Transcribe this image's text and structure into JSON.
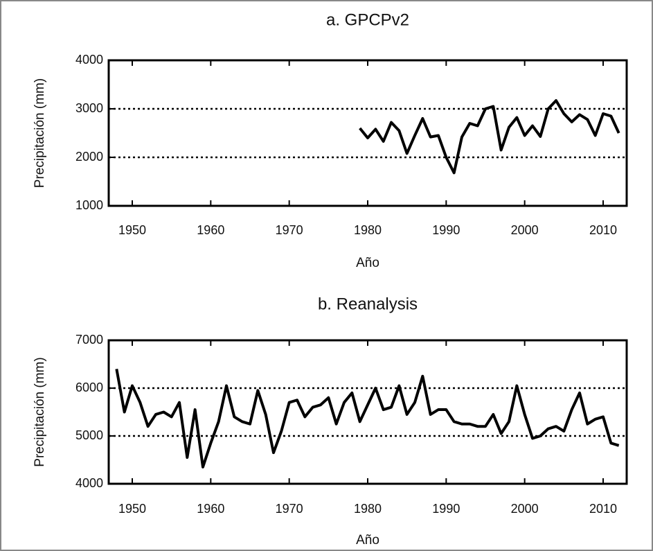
{
  "chart_data": [
    {
      "type": "line",
      "title": "a. GPCPv2",
      "x_label": "Año",
      "y_label": "Precipitación (mm)",
      "x": [
        1979,
        1980,
        1981,
        1982,
        1983,
        1984,
        1985,
        1986,
        1987,
        1988,
        1989,
        1990,
        1991,
        1992,
        1993,
        1994,
        1995,
        1996,
        1997,
        1998,
        1999,
        2000,
        2001,
        2002,
        2003,
        2004,
        2005,
        2006,
        2007,
        2008,
        2009,
        2010,
        2011,
        2012
      ],
      "series": [
        {
          "color": "#000000",
          "values": [
            2600,
            2400,
            2580,
            2330,
            2720,
            2550,
            2080,
            2450,
            2800,
            2420,
            2450,
            2000,
            1680,
            2420,
            2700,
            2650,
            3000,
            3050,
            2150,
            2620,
            2820,
            2450,
            2650,
            2430,
            3000,
            3170,
            2900,
            2730,
            2880,
            2780,
            2450,
            2900,
            2850,
            2500
          ]
        }
      ],
      "xlim": [
        1947,
        2013
      ],
      "xticks": [
        1950,
        1960,
        1970,
        1980,
        1990,
        2000,
        2010
      ],
      "ylim": [
        1000,
        4000
      ],
      "yticks": [
        1000,
        2000,
        3000,
        4000
      ],
      "grid": true
    },
    {
      "type": "line",
      "title": "b. Reanalysis",
      "x_label": "Año",
      "y_label": "Precipitación (mm)",
      "x": [
        1948,
        1949,
        1950,
        1951,
        1952,
        1953,
        1954,
        1955,
        1956,
        1957,
        1958,
        1959,
        1960,
        1961,
        1962,
        1963,
        1964,
        1965,
        1966,
        1967,
        1968,
        1969,
        1970,
        1971,
        1972,
        1973,
        1974,
        1975,
        1976,
        1977,
        1978,
        1979,
        1980,
        1981,
        1982,
        1983,
        1984,
        1985,
        1986,
        1987,
        1988,
        1989,
        1990,
        1991,
        1992,
        1993,
        1994,
        1995,
        1996,
        1997,
        1998,
        1999,
        2000,
        2001,
        2002,
        2003,
        2004,
        2005,
        2006,
        2007,
        2008,
        2009,
        2010,
        2011,
        2012
      ],
      "series": [
        {
          "color": "#000000",
          "values": [
            6400,
            5500,
            6050,
            5700,
            5200,
            5450,
            5500,
            5400,
            5700,
            4550,
            5550,
            4350,
            4850,
            5300,
            6050,
            5400,
            5300,
            5250,
            5950,
            5450,
            4650,
            5100,
            5700,
            5750,
            5400,
            5600,
            5650,
            5800,
            5250,
            5700,
            5900,
            5300,
            5650,
            6000,
            5550,
            5600,
            6050,
            5450,
            5700,
            6250,
            5450,
            5550,
            5550,
            5300,
            5250,
            5250,
            5200,
            5200,
            5450,
            5050,
            5300,
            6050,
            5450,
            4950,
            5000,
            5150,
            5200,
            5100,
            5550,
            5900,
            5250,
            5350,
            5400,
            4850,
            4800
          ]
        }
      ],
      "xlim": [
        1947,
        2013
      ],
      "xticks": [
        1950,
        1960,
        1970,
        1980,
        1990,
        2000,
        2010
      ],
      "ylim": [
        4000,
        7000
      ],
      "yticks": [
        4000,
        5000,
        6000,
        7000
      ],
      "grid": true
    }
  ]
}
